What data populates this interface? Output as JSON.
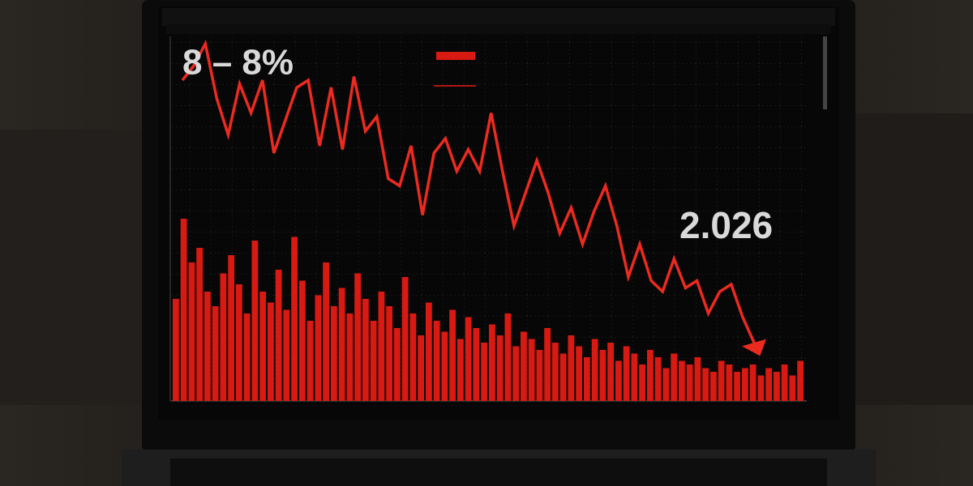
{
  "chart_data": [
    {
      "type": "bar",
      "color": "#d81a12",
      "ylim": [
        0,
        100
      ],
      "values": [
        28,
        50,
        38,
        42,
        30,
        26,
        35,
        40,
        32,
        24,
        44,
        30,
        27,
        36,
        25,
        45,
        33,
        22,
        29,
        38,
        26,
        31,
        24,
        35,
        28,
        22,
        30,
        26,
        20,
        34,
        24,
        18,
        27,
        22,
        19,
        25,
        17,
        23,
        20,
        16,
        21,
        18,
        24,
        15,
        19,
        17,
        14,
        20,
        16,
        13,
        18,
        15,
        12,
        17,
        14,
        16,
        11,
        15,
        13,
        10,
        14,
        12,
        9,
        13,
        11,
        10,
        12,
        9,
        8,
        11,
        10,
        8,
        9,
        10,
        7,
        9,
        8,
        10,
        7,
        11
      ]
    },
    {
      "type": "line",
      "color": "#ec2a20",
      "ylim": [
        0,
        100
      ],
      "values": [
        88,
        92,
        98,
        83,
        73,
        87,
        79,
        88,
        68,
        77,
        86,
        88,
        70,
        86,
        69,
        89,
        74,
        78,
        61,
        59,
        70,
        51,
        68,
        72,
        63,
        69,
        63,
        79,
        63,
        48,
        57,
        66,
        57,
        46,
        53,
        43,
        52,
        59,
        48,
        34,
        43,
        33,
        30,
        39,
        31,
        33,
        24,
        30,
        32,
        23,
        16
      ],
      "annotations": [
        "8 – 8%",
        "2.026"
      ]
    }
  ]
}
